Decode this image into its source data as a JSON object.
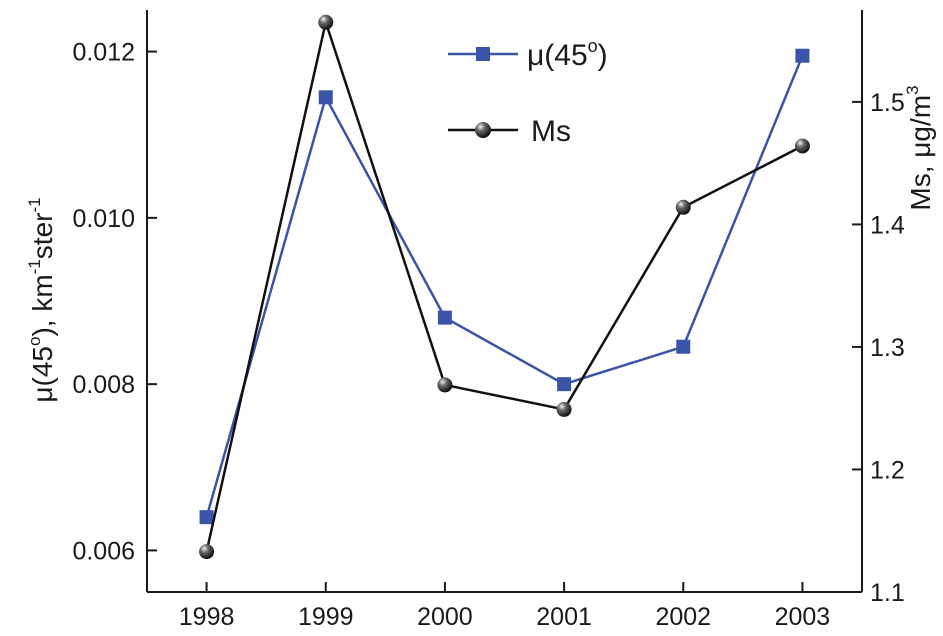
{
  "chart_data": {
    "type": "line",
    "x": [
      "1998",
      "1999",
      "2000",
      "2001",
      "2002",
      "2003"
    ],
    "xlim": [
      1997.5,
      2003.5
    ],
    "y_left": {
      "label_main": "μ(45",
      "label_sup1": "o",
      "label_mid": "), km",
      "label_sup2": "-1",
      "label_end": "ster",
      "label_sup3": "-1",
      "ylim": [
        0.0055,
        0.0125
      ],
      "ticks": [
        "0.006",
        "0.008",
        "0.010",
        "0.012"
      ]
    },
    "y_right": {
      "label_main": "Ms, μg/m",
      "label_sup": "3",
      "ylim": [
        1.1,
        1.575
      ],
      "ticks": [
        "1.1",
        "1.2",
        "1.3",
        "1.4",
        "1.5"
      ]
    },
    "series": [
      {
        "name_main": "μ(45",
        "name_sup": "o",
        "name_end": ")",
        "axis": "left",
        "marker": "square",
        "color": "#3a55a8",
        "values": [
          0.0064,
          0.01145,
          0.0088,
          0.008,
          0.00845,
          0.01195
        ]
      },
      {
        "name": "Ms",
        "axis": "right",
        "marker": "sphere",
        "color": "#111111",
        "values": [
          1.133,
          1.565,
          1.269,
          1.249,
          1.414,
          1.464
        ]
      }
    ],
    "grid": false,
    "legend_position": "top-center"
  }
}
